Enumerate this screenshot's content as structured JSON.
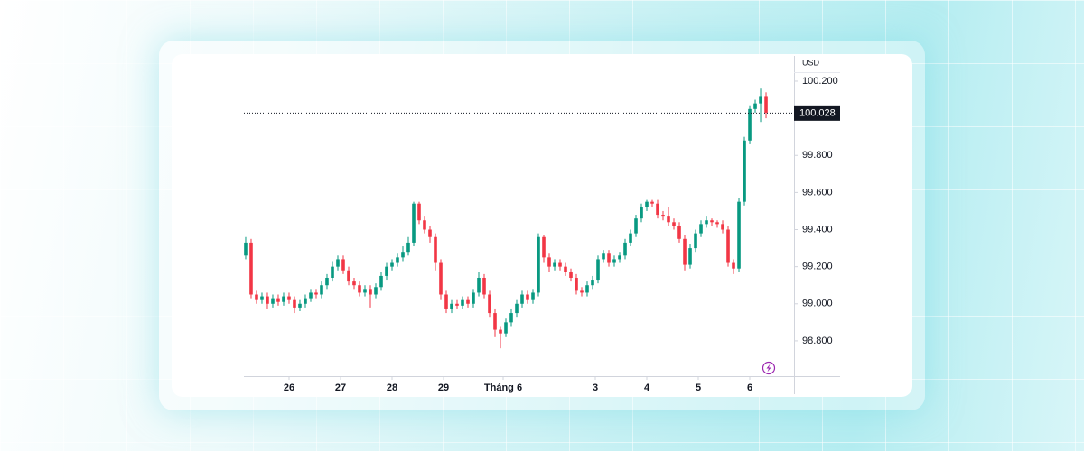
{
  "chart_data": {
    "type": "candlestick",
    "axis_unit": "USD",
    "last_price": 100.028,
    "up_color": "#089981",
    "down_color": "#f23645",
    "ylim": [
      98.61,
      100.336
    ],
    "yticks": [
      {
        "value": 98.8,
        "label": "98.800"
      },
      {
        "value": 99.0,
        "label": "99.000"
      },
      {
        "value": 99.2,
        "label": "99.200"
      },
      {
        "value": 99.4,
        "label": "99.400"
      },
      {
        "value": 99.6,
        "label": "99.600"
      },
      {
        "value": 99.8,
        "label": "99.800"
      },
      {
        "value": 100.2,
        "label": "100.200"
      }
    ],
    "xlim": [
      -0.33,
      101.33
    ],
    "xticks": [
      {
        "value": 8,
        "label": "26"
      },
      {
        "value": 17.5,
        "label": "27"
      },
      {
        "value": 27,
        "label": "28"
      },
      {
        "value": 36.5,
        "label": "29"
      },
      {
        "value": 47.5,
        "label": "Tháng 6"
      },
      {
        "value": 64.5,
        "label": "3"
      },
      {
        "value": 74,
        "label": "4"
      },
      {
        "value": 83.5,
        "label": "5"
      },
      {
        "value": 93,
        "label": "6"
      }
    ],
    "open": [
      99.26,
      99.33,
      99.05,
      99.02,
      99.04,
      99.0,
      99.03,
      99.01,
      99.04,
      99.02,
      98.98,
      99.0,
      99.03,
      99.06,
      99.05,
      99.1,
      99.14,
      99.2,
      99.24,
      99.18,
      99.12,
      99.1,
      99.06,
      99.08,
      99.05,
      99.09,
      99.15,
      99.2,
      99.22,
      99.25,
      99.28,
      99.33,
      99.54,
      99.45,
      99.4,
      99.36,
      99.22,
      99.05,
      98.97,
      99.0,
      98.99,
      99.02,
      99.0,
      99.06,
      99.14,
      99.05,
      98.95,
      98.86,
      98.84,
      98.9,
      98.95,
      99.0,
      99.05,
      99.02,
      99.06,
      99.36,
      99.25,
      99.2,
      99.22,
      99.2,
      99.17,
      99.14,
      99.07,
      99.06,
      99.1,
      99.13,
      99.24,
      99.27,
      99.22,
      99.24,
      99.26,
      99.33,
      99.38,
      99.46,
      99.52,
      99.55,
      99.54,
      99.48,
      99.47,
      99.44,
      99.42,
      99.35,
      99.21,
      99.3,
      99.38,
      99.43,
      99.45,
      99.44,
      99.43,
      99.4,
      99.22,
      99.19,
      99.55,
      99.88,
      100.05,
      100.08,
      100.12
    ],
    "high": [
      99.36,
      99.35,
      99.07,
      99.06,
      99.06,
      99.05,
      99.05,
      99.06,
      99.06,
      99.04,
      99.02,
      99.05,
      99.08,
      99.08,
      99.12,
      99.16,
      99.23,
      99.26,
      99.26,
      99.2,
      99.14,
      99.12,
      99.1,
      99.1,
      99.11,
      99.17,
      99.22,
      99.24,
      99.27,
      99.31,
      99.36,
      99.55,
      99.55,
      99.47,
      99.42,
      99.38,
      99.24,
      99.07,
      99.02,
      99.02,
      99.04,
      99.04,
      99.08,
      99.17,
      99.16,
      99.07,
      98.97,
      98.88,
      98.92,
      98.97,
      99.02,
      99.07,
      99.07,
      99.08,
      99.38,
      99.37,
      99.27,
      99.24,
      99.24,
      99.22,
      99.19,
      99.16,
      99.09,
      99.12,
      99.15,
      99.26,
      99.29,
      99.29,
      99.26,
      99.28,
      99.35,
      99.4,
      99.48,
      99.54,
      99.56,
      99.56,
      99.56,
      99.5,
      99.52,
      99.46,
      99.44,
      99.37,
      99.32,
      99.4,
      99.45,
      99.47,
      99.46,
      99.45,
      99.45,
      99.42,
      99.24,
      99.57,
      99.9,
      100.07,
      100.1,
      100.16,
      100.14
    ],
    "low": [
      99.24,
      99.03,
      99.0,
      99.0,
      98.97,
      98.98,
      98.99,
      98.99,
      99.0,
      98.95,
      98.96,
      98.98,
      99.01,
      99.03,
      99.03,
      99.08,
      99.12,
      99.18,
      99.16,
      99.1,
      99.08,
      99.04,
      99.04,
      98.98,
      99.03,
      99.07,
      99.13,
      99.18,
      99.2,
      99.23,
      99.26,
      99.31,
      99.43,
      99.38,
      99.33,
      99.18,
      99.02,
      98.95,
      98.95,
      98.97,
      98.97,
      98.98,
      98.98,
      99.04,
      99.03,
      98.93,
      98.82,
      98.76,
      98.82,
      98.88,
      98.93,
      98.98,
      99.0,
      99.0,
      99.04,
      99.22,
      99.17,
      99.18,
      99.18,
      99.15,
      99.12,
      99.05,
      99.04,
      99.04,
      99.08,
      99.11,
      99.22,
      99.2,
      99.2,
      99.22,
      99.24,
      99.31,
      99.36,
      99.44,
      99.5,
      99.52,
      99.46,
      99.45,
      99.42,
      99.4,
      99.33,
      99.18,
      99.19,
      99.28,
      99.36,
      99.41,
      99.42,
      99.41,
      99.38,
      99.2,
      99.16,
      99.17,
      99.53,
      99.86,
      100.03,
      99.98,
      100.0
    ],
    "close": [
      99.33,
      99.05,
      99.02,
      99.04,
      99.0,
      99.03,
      99.01,
      99.04,
      99.02,
      98.98,
      99.0,
      99.03,
      99.06,
      99.05,
      99.1,
      99.14,
      99.2,
      99.24,
      99.18,
      99.12,
      99.1,
      99.06,
      99.08,
      99.05,
      99.09,
      99.15,
      99.2,
      99.22,
      99.25,
      99.28,
      99.33,
      99.54,
      99.45,
      99.4,
      99.36,
      99.22,
      99.05,
      98.97,
      99.0,
      98.99,
      99.02,
      99.0,
      99.06,
      99.14,
      99.05,
      98.95,
      98.86,
      98.84,
      98.9,
      98.95,
      99.0,
      99.05,
      99.02,
      99.06,
      99.36,
      99.25,
      99.2,
      99.22,
      99.2,
      99.17,
      99.14,
      99.07,
      99.06,
      99.1,
      99.13,
      99.24,
      99.27,
      99.22,
      99.24,
      99.26,
      99.33,
      99.38,
      99.46,
      99.52,
      99.55,
      99.54,
      99.48,
      99.47,
      99.44,
      99.42,
      99.35,
      99.21,
      99.3,
      99.38,
      99.43,
      99.45,
      99.44,
      99.43,
      99.4,
      99.22,
      99.19,
      99.55,
      99.88,
      100.05,
      100.08,
      100.12,
      100.03
    ]
  }
}
